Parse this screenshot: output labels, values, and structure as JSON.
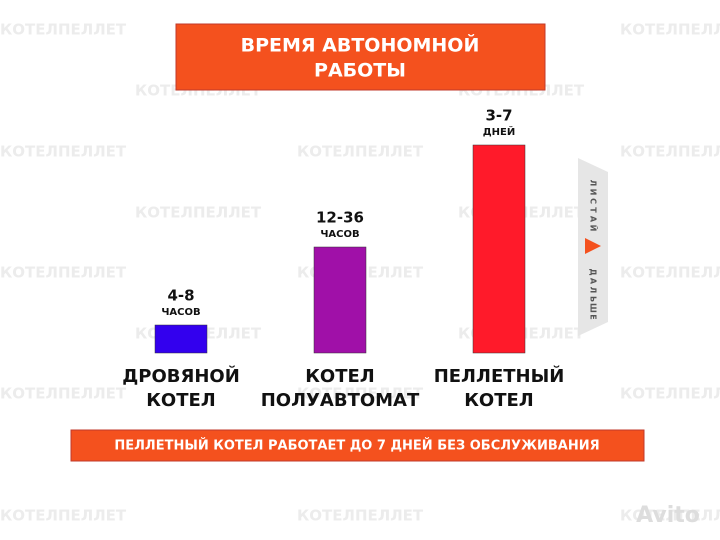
{
  "watermark": "КОТЕЛПЕЛЛЕТ",
  "title": [
    "ВРЕМЯ АВТОНОМНОЙ",
    "РАБОТЫ"
  ],
  "bars": [
    {
      "amount": "4-8",
      "unit": "ЧАСОВ",
      "label": [
        "ДРОВЯНОЙ",
        "КОТЕЛ"
      ]
    },
    {
      "amount": "12-36",
      "unit": "ЧАСОВ",
      "label": [
        "КОТЕЛ",
        "ПОЛУАВТОМАТ"
      ]
    },
    {
      "amount": "3-7",
      "unit": "ДНЕЙ",
      "label": [
        "ПЕЛЛЕТНЫЙ",
        "КОТЕЛ"
      ]
    }
  ],
  "banner": "ПЕЛЛЕТНЫЙ КОТЕЛ РАБОТАЕТ ДО 7 ДНЕЙ БЕЗ ОБСЛУЖИВАНИЯ",
  "side_arrow": {
    "top": "ЛИСТАЙ",
    "bottom": "ДАЛЬШЕ"
  },
  "logo": "Avito"
}
